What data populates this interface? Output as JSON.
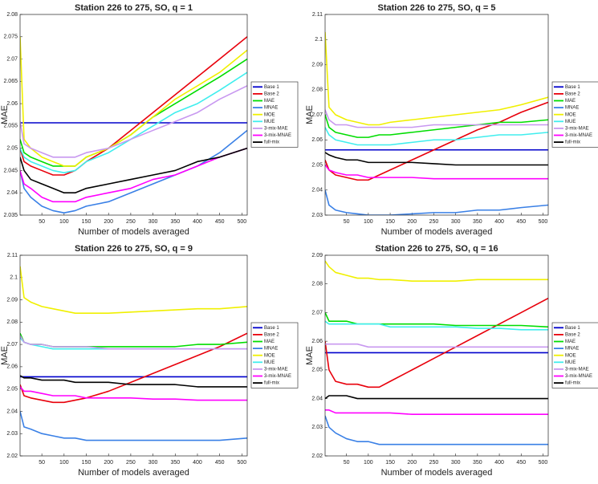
{
  "chart_data": [
    {
      "type": "line",
      "title": "Station 226 to 275, SO, q = 1",
      "xlabel": "Number of models averaged",
      "ylabel": "MAE",
      "legend": "outside-right",
      "x": [
        1,
        10,
        25,
        50,
        75,
        100,
        125,
        150,
        200,
        250,
        300,
        350,
        400,
        450,
        512
      ],
      "xlim": [
        1,
        512
      ],
      "xticks": [
        50,
        100,
        150,
        200,
        250,
        300,
        350,
        400,
        450,
        500
      ],
      "ylim": [
        2.035,
        2.08
      ],
      "yticks": [
        2.035,
        2.04,
        2.045,
        2.05,
        2.055,
        2.06,
        2.065,
        2.07,
        2.075,
        2.08
      ],
      "series": [
        {
          "name": "Base 1",
          "color": "#0000cc",
          "values": [
            2.0557,
            2.0557,
            2.0557,
            2.0557,
            2.0557,
            2.0557,
            2.0557,
            2.0557,
            2.0557,
            2.0557,
            2.0557,
            2.0557,
            2.0557,
            2.0557,
            2.0557
          ]
        },
        {
          "name": "Base 2",
          "color": "#e8000b",
          "values": [
            2.05,
            2.047,
            2.046,
            2.045,
            2.044,
            2.044,
            2.045,
            2.047,
            2.05,
            2.054,
            2.058,
            2.062,
            2.066,
            2.07,
            2.075
          ]
        },
        {
          "name": "MAE",
          "color": "#00dd00",
          "values": [
            2.052,
            2.049,
            2.048,
            2.047,
            2.046,
            2.046,
            2.046,
            2.048,
            2.05,
            2.053,
            2.057,
            2.06,
            2.063,
            2.066,
            2.07
          ]
        },
        {
          "name": "MNAE",
          "color": "#3a80e6",
          "values": [
            2.045,
            2.041,
            2.039,
            2.037,
            2.036,
            2.0355,
            2.036,
            2.037,
            2.038,
            2.04,
            2.042,
            2.044,
            2.046,
            2.049,
            2.054
          ]
        },
        {
          "name": "MOE",
          "color": "#f0f000",
          "values": [
            2.075,
            2.052,
            2.05,
            2.048,
            2.047,
            2.046,
            2.046,
            2.048,
            2.05,
            2.053,
            2.057,
            2.061,
            2.064,
            2.067,
            2.072
          ]
        },
        {
          "name": "MUE",
          "color": "#40eeee",
          "values": [
            2.05,
            2.048,
            2.047,
            2.046,
            2.045,
            2.0445,
            2.045,
            2.047,
            2.049,
            2.052,
            2.055,
            2.058,
            2.06,
            2.063,
            2.067
          ]
        },
        {
          "name": "3-mix-MAE",
          "color": "#c898f0",
          "values": [
            2.056,
            2.051,
            2.05,
            2.049,
            2.048,
            2.048,
            2.048,
            2.049,
            2.05,
            2.052,
            2.054,
            2.056,
            2.058,
            2.061,
            2.064
          ]
        },
        {
          "name": "3-mix-MNAE",
          "color": "#ff00ff",
          "values": [
            2.045,
            2.042,
            2.041,
            2.039,
            2.038,
            2.038,
            2.038,
            2.039,
            2.04,
            2.041,
            2.043,
            2.044,
            2.046,
            2.048,
            2.05
          ]
        },
        {
          "name": "full-mix",
          "color": "#000000",
          "values": [
            2.048,
            2.045,
            2.043,
            2.042,
            2.041,
            2.04,
            2.04,
            2.041,
            2.042,
            2.043,
            2.044,
            2.045,
            2.047,
            2.048,
            2.05
          ]
        }
      ]
    },
    {
      "type": "line",
      "title": "Station 226 to 275, SO, q = 5",
      "xlabel": "Number of models averaged",
      "ylabel": "MAE",
      "legend": "outside-right",
      "x": [
        1,
        10,
        25,
        50,
        75,
        100,
        125,
        150,
        200,
        250,
        300,
        350,
        400,
        450,
        512
      ],
      "xlim": [
        1,
        512
      ],
      "xticks": [
        50,
        100,
        150,
        200,
        250,
        300,
        350,
        400,
        450,
        500
      ],
      "ylim": [
        2.03,
        2.11
      ],
      "yticks": [
        2.03,
        2.04,
        2.05,
        2.06,
        2.07,
        2.08,
        2.09,
        2.1,
        2.11
      ],
      "series": [
        {
          "name": "Base 1",
          "color": "#0000cc",
          "values": [
            2.056,
            2.056,
            2.056,
            2.056,
            2.056,
            2.056,
            2.056,
            2.056,
            2.056,
            2.056,
            2.056,
            2.056,
            2.056,
            2.056,
            2.056
          ]
        },
        {
          "name": "Base 2",
          "color": "#e8000b",
          "values": [
            2.052,
            2.048,
            2.046,
            2.045,
            2.044,
            2.044,
            2.046,
            2.048,
            2.052,
            2.056,
            2.06,
            2.064,
            2.067,
            2.071,
            2.075
          ]
        },
        {
          "name": "MAE",
          "color": "#00dd00",
          "values": [
            2.07,
            2.065,
            2.063,
            2.062,
            2.061,
            2.061,
            2.062,
            2.062,
            2.063,
            2.064,
            2.065,
            2.066,
            2.067,
            2.067,
            2.068
          ]
        },
        {
          "name": "MNAE",
          "color": "#3a80e6",
          "values": [
            2.04,
            2.034,
            2.032,
            2.031,
            2.0305,
            2.03,
            2.03,
            2.03,
            2.0305,
            2.031,
            2.031,
            2.032,
            2.032,
            2.033,
            2.034
          ]
        },
        {
          "name": "MOE",
          "color": "#f0f000",
          "values": [
            2.103,
            2.073,
            2.07,
            2.068,
            2.067,
            2.066,
            2.066,
            2.067,
            2.068,
            2.069,
            2.07,
            2.071,
            2.072,
            2.074,
            2.077
          ]
        },
        {
          "name": "MUE",
          "color": "#40eeee",
          "values": [
            2.065,
            2.062,
            2.06,
            2.059,
            2.058,
            2.058,
            2.058,
            2.058,
            2.059,
            2.06,
            2.06,
            2.061,
            2.062,
            2.062,
            2.063
          ]
        },
        {
          "name": "3-mix-MAE",
          "color": "#c898f0",
          "values": [
            2.072,
            2.068,
            2.066,
            2.066,
            2.065,
            2.065,
            2.065,
            2.065,
            2.065,
            2.066,
            2.066,
            2.066,
            2.066,
            2.066,
            2.066
          ]
        },
        {
          "name": "3-mix-MNAE",
          "color": "#ff00ff",
          "values": [
            2.05,
            2.048,
            2.047,
            2.046,
            2.046,
            2.045,
            2.045,
            2.045,
            2.045,
            2.0445,
            2.0445,
            2.0445,
            2.0445,
            2.0445,
            2.0445
          ]
        },
        {
          "name": "full-mix",
          "color": "#000000",
          "values": [
            2.055,
            2.054,
            2.053,
            2.052,
            2.052,
            2.051,
            2.051,
            2.051,
            2.051,
            2.0505,
            2.05,
            2.05,
            2.05,
            2.05,
            2.05
          ]
        }
      ]
    },
    {
      "type": "line",
      "title": "Station 226 to 275, SO, q = 9",
      "xlabel": "Number of models averaged",
      "ylabel": "MAE",
      "legend": "outside-right",
      "x": [
        1,
        10,
        25,
        50,
        75,
        100,
        125,
        150,
        200,
        250,
        300,
        350,
        400,
        450,
        512
      ],
      "xlim": [
        1,
        512
      ],
      "xticks": [
        50,
        100,
        150,
        200,
        250,
        300,
        350,
        400,
        450,
        500
      ],
      "ylim": [
        2.02,
        2.11
      ],
      "yticks": [
        2.02,
        2.03,
        2.04,
        2.05,
        2.06,
        2.07,
        2.08,
        2.09,
        2.1,
        2.11
      ],
      "series": [
        {
          "name": "Base 1",
          "color": "#0000cc",
          "values": [
            2.0555,
            2.0555,
            2.0555,
            2.0555,
            2.0555,
            2.0555,
            2.0555,
            2.0555,
            2.0555,
            2.0555,
            2.0555,
            2.0555,
            2.0555,
            2.0555,
            2.0555
          ]
        },
        {
          "name": "Base 2",
          "color": "#e8000b",
          "values": [
            2.052,
            2.047,
            2.046,
            2.045,
            2.044,
            2.044,
            2.045,
            2.046,
            2.049,
            2.053,
            2.057,
            2.061,
            2.065,
            2.069,
            2.075
          ]
        },
        {
          "name": "MAE",
          "color": "#00dd00",
          "values": [
            2.075,
            2.071,
            2.07,
            2.07,
            2.069,
            2.069,
            2.069,
            2.069,
            2.069,
            2.069,
            2.069,
            2.069,
            2.07,
            2.07,
            2.071
          ]
        },
        {
          "name": "MNAE",
          "color": "#3a80e6",
          "values": [
            2.04,
            2.033,
            2.032,
            2.03,
            2.029,
            2.028,
            2.028,
            2.027,
            2.027,
            2.027,
            2.027,
            2.027,
            2.027,
            2.027,
            2.028
          ]
        },
        {
          "name": "MOE",
          "color": "#f0f000",
          "values": [
            2.105,
            2.091,
            2.089,
            2.087,
            2.086,
            2.085,
            2.084,
            2.084,
            2.084,
            2.0845,
            2.085,
            2.0855,
            2.086,
            2.086,
            2.087
          ]
        },
        {
          "name": "MUE",
          "color": "#40eeee",
          "values": [
            2.073,
            2.071,
            2.07,
            2.069,
            2.068,
            2.068,
            2.068,
            2.068,
            2.068,
            2.068,
            2.068,
            2.068,
            2.068,
            2.068,
            2.068
          ]
        },
        {
          "name": "3-mix-MAE",
          "color": "#c898f0",
          "values": [
            2.074,
            2.071,
            2.07,
            2.07,
            2.069,
            2.069,
            2.069,
            2.069,
            2.068,
            2.068,
            2.068,
            2.068,
            2.068,
            2.068,
            2.068
          ]
        },
        {
          "name": "3-mix-MNAE",
          "color": "#ff00ff",
          "values": [
            2.051,
            2.049,
            2.049,
            2.048,
            2.047,
            2.047,
            2.047,
            2.046,
            2.046,
            2.046,
            2.0455,
            2.0455,
            2.045,
            2.045,
            2.045
          ]
        },
        {
          "name": "full-mix",
          "color": "#000000",
          "values": [
            2.056,
            2.055,
            2.055,
            2.054,
            2.054,
            2.054,
            2.053,
            2.053,
            2.053,
            2.052,
            2.052,
            2.052,
            2.051,
            2.051,
            2.051
          ]
        }
      ]
    },
    {
      "type": "line",
      "title": "Station 226 to 275, SO, q = 16",
      "xlabel": "Number of models averaged",
      "ylabel": "MAE",
      "legend": "outside-right",
      "x": [
        1,
        10,
        25,
        50,
        75,
        100,
        125,
        150,
        200,
        250,
        300,
        350,
        400,
        450,
        512
      ],
      "xlim": [
        1,
        512
      ],
      "xticks": [
        50,
        100,
        150,
        200,
        250,
        300,
        350,
        400,
        450,
        500
      ],
      "ylim": [
        2.02,
        2.09
      ],
      "yticks": [
        2.02,
        2.03,
        2.04,
        2.05,
        2.06,
        2.07,
        2.08,
        2.09
      ],
      "series": [
        {
          "name": "Base 1",
          "color": "#0000cc",
          "values": [
            2.056,
            2.056,
            2.056,
            2.056,
            2.056,
            2.056,
            2.056,
            2.056,
            2.056,
            2.056,
            2.056,
            2.056,
            2.056,
            2.056,
            2.056
          ]
        },
        {
          "name": "Base 2",
          "color": "#e8000b",
          "values": [
            2.06,
            2.05,
            2.046,
            2.045,
            2.045,
            2.044,
            2.044,
            2.046,
            2.05,
            2.054,
            2.058,
            2.062,
            2.066,
            2.07,
            2.075
          ]
        },
        {
          "name": "MAE",
          "color": "#00dd00",
          "values": [
            2.07,
            2.067,
            2.067,
            2.067,
            2.066,
            2.066,
            2.066,
            2.066,
            2.066,
            2.066,
            2.0655,
            2.0655,
            2.0655,
            2.0655,
            2.065
          ]
        },
        {
          "name": "MNAE",
          "color": "#3a80e6",
          "values": [
            2.034,
            2.03,
            2.028,
            2.026,
            2.025,
            2.025,
            2.024,
            2.024,
            2.024,
            2.024,
            2.024,
            2.024,
            2.024,
            2.024,
            2.024
          ]
        },
        {
          "name": "MOE",
          "color": "#f0f000",
          "values": [
            2.088,
            2.086,
            2.084,
            2.083,
            2.082,
            2.082,
            2.0815,
            2.0815,
            2.081,
            2.081,
            2.081,
            2.0815,
            2.0815,
            2.0815,
            2.0815
          ]
        },
        {
          "name": "MUE",
          "color": "#40eeee",
          "values": [
            2.067,
            2.066,
            2.066,
            2.066,
            2.066,
            2.066,
            2.066,
            2.065,
            2.065,
            2.065,
            2.065,
            2.0645,
            2.0645,
            2.064,
            2.064
          ]
        },
        {
          "name": "3-mix-MAE",
          "color": "#c898f0",
          "values": [
            2.059,
            2.059,
            2.059,
            2.059,
            2.059,
            2.058,
            2.058,
            2.058,
            2.058,
            2.058,
            2.058,
            2.058,
            2.058,
            2.058,
            2.058
          ]
        },
        {
          "name": "3-mix-MNAE",
          "color": "#ff00ff",
          "values": [
            2.036,
            2.036,
            2.035,
            2.035,
            2.035,
            2.035,
            2.035,
            2.035,
            2.0345,
            2.0345,
            2.0345,
            2.0345,
            2.0345,
            2.0345,
            2.0345
          ]
        },
        {
          "name": "full-mix",
          "color": "#000000",
          "values": [
            2.04,
            2.041,
            2.041,
            2.041,
            2.04,
            2.04,
            2.04,
            2.04,
            2.04,
            2.04,
            2.04,
            2.04,
            2.04,
            2.04,
            2.04
          ]
        }
      ]
    }
  ]
}
